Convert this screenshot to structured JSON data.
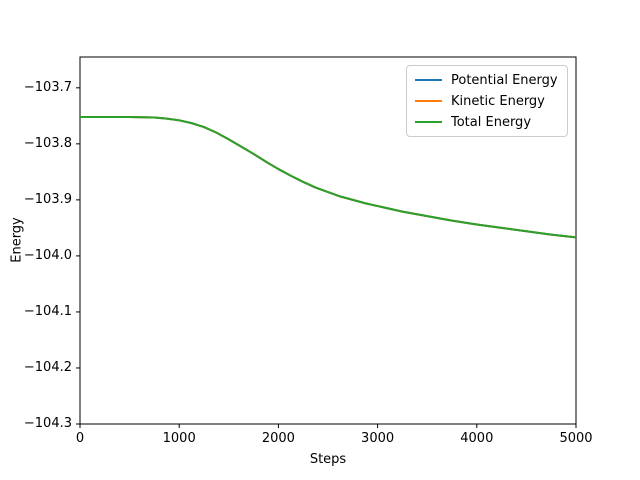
{
  "figure": {
    "background": "#ffffff",
    "spine_color": "#000000",
    "tick_color": "#000000"
  },
  "chart_data": {
    "type": "line",
    "title": "",
    "xlabel": "Steps",
    "ylabel": "Energy",
    "xlim": [
      0,
      5000
    ],
    "ylim": [
      -104.3,
      -103.645
    ],
    "xticks": [
      0,
      1000,
      2000,
      3000,
      4000,
      5000
    ],
    "yticks": [
      -103.7,
      -103.8,
      -103.9,
      -104.0,
      -104.1,
      -104.2,
      -104.3
    ],
    "grid": false,
    "legend_position": "upper right",
    "x": [
      0,
      250,
      500,
      625,
      750,
      875,
      1000,
      1125,
      1250,
      1375,
      1500,
      1625,
      1750,
      1875,
      2000,
      2125,
      2250,
      2375,
      2500,
      2625,
      2750,
      2875,
      3000,
      3250,
      3500,
      3750,
      4000,
      4250,
      4500,
      4750,
      5000
    ],
    "series": [
      {
        "name": "Potential Energy",
        "color": "#1f77b4",
        "values": [
          -103.752,
          -103.752,
          -103.752,
          -103.7525,
          -103.753,
          -103.755,
          -103.758,
          -103.763,
          -103.77,
          -103.78,
          -103.792,
          -103.805,
          -103.818,
          -103.832,
          -103.845,
          -103.857,
          -103.868,
          -103.878,
          -103.886,
          -103.894,
          -103.9,
          -103.906,
          -103.911,
          -103.921,
          -103.929,
          -103.937,
          -103.944,
          -103.95,
          -103.956,
          -103.962,
          -103.967
        ]
      },
      {
        "name": "Kinetic Energy",
        "color": "#ff7f0e",
        "values": [
          -103.752,
          -103.752,
          -103.752,
          -103.7525,
          -103.753,
          -103.755,
          -103.758,
          -103.763,
          -103.77,
          -103.78,
          -103.792,
          -103.805,
          -103.818,
          -103.832,
          -103.845,
          -103.857,
          -103.868,
          -103.878,
          -103.886,
          -103.894,
          -103.9,
          -103.906,
          -103.911,
          -103.921,
          -103.929,
          -103.937,
          -103.944,
          -103.95,
          -103.956,
          -103.962,
          -103.967
        ]
      },
      {
        "name": "Total Energy",
        "color": "#2ca02c",
        "values": [
          -103.752,
          -103.752,
          -103.752,
          -103.7525,
          -103.753,
          -103.755,
          -103.758,
          -103.763,
          -103.77,
          -103.78,
          -103.792,
          -103.805,
          -103.818,
          -103.832,
          -103.845,
          -103.857,
          -103.868,
          -103.878,
          -103.886,
          -103.894,
          -103.9,
          -103.906,
          -103.911,
          -103.921,
          -103.929,
          -103.937,
          -103.944,
          -103.95,
          -103.956,
          -103.962,
          -103.967
        ]
      }
    ]
  }
}
